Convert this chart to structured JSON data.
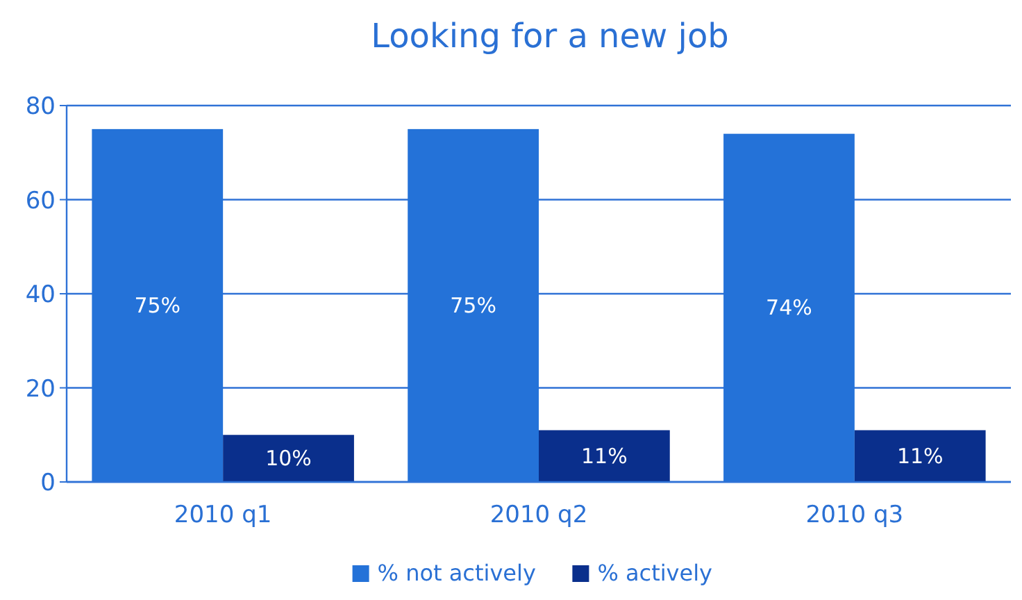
{
  "chart_data": {
    "type": "bar",
    "title": "Looking for a new job",
    "categories": [
      "2010 q1",
      "2010 q2",
      "2010 q3"
    ],
    "series": [
      {
        "name": "% not actively",
        "color": "#2472d8",
        "values": [
          75,
          75,
          74
        ],
        "value_labels": [
          "75%",
          "75%",
          "74%"
        ]
      },
      {
        "name": "% actively",
        "color": "#0a2f8c",
        "values": [
          10,
          11,
          11
        ],
        "value_labels": [
          "10%",
          "11%",
          "11%"
        ]
      }
    ],
    "ylim": [
      0,
      80
    ],
    "yticks": [
      0,
      20,
      40,
      60,
      80
    ],
    "grid": "y",
    "legend": "bottom"
  }
}
